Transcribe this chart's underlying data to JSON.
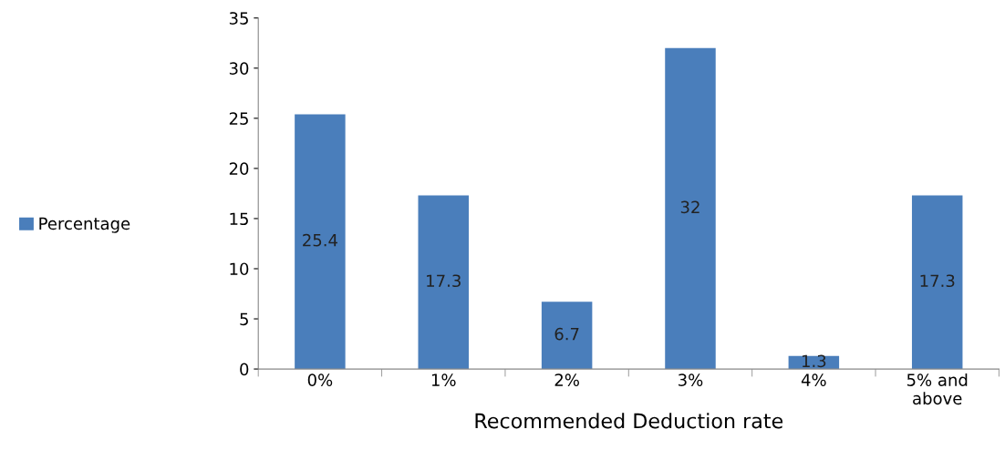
{
  "chart_data": {
    "type": "bar",
    "xlabel": "Recommended Deduction rate",
    "categories": [
      "0%",
      "1%",
      "2%",
      "3%",
      "4%",
      "5% and\nabove"
    ],
    "series": [
      {
        "name": "Percentage",
        "color": "#4a7ebb",
        "values": [
          25.4,
          17.3,
          6.7,
          32,
          1.3,
          17.3
        ]
      }
    ],
    "ylim": [
      0,
      35
    ],
    "yticks": [
      0,
      5,
      10,
      15,
      20,
      25,
      30,
      35
    ],
    "data_labels": true,
    "legend": "left",
    "grid": false
  }
}
